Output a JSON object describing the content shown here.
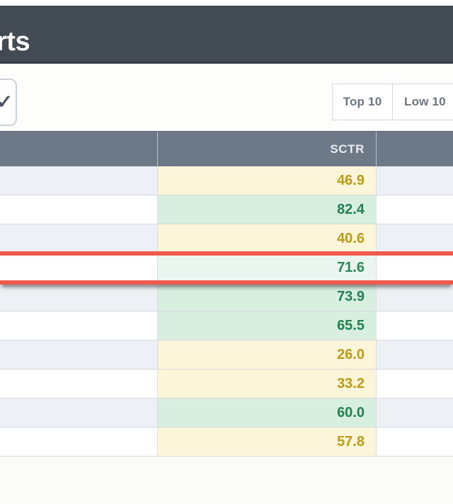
{
  "header": {
    "title_visible": "rts"
  },
  "toolbar": {
    "dropdown": {
      "icon": "check-icon",
      "glyph": "✓"
    },
    "buttons": [
      {
        "label": "Top 10"
      },
      {
        "label": "Low 10"
      }
    ]
  },
  "table": {
    "columns": [
      {
        "label": ""
      },
      {
        "label": "SCTR"
      },
      {
        "label": ""
      }
    ],
    "rows": [
      {
        "sctr": "46.9",
        "tone": "yellow",
        "dragging": false
      },
      {
        "sctr": "82.4",
        "tone": "green",
        "dragging": false
      },
      {
        "sctr": "40.6",
        "tone": "yellow",
        "dragging": false
      },
      {
        "sctr": "71.6",
        "tone": "green",
        "dragging": true
      },
      {
        "sctr": "73.9",
        "tone": "green",
        "dragging": false
      },
      {
        "sctr": "65.5",
        "tone": "green",
        "dragging": false
      },
      {
        "sctr": "26.0",
        "tone": "yellow",
        "dragging": false
      },
      {
        "sctr": "33.2",
        "tone": "yellow",
        "dragging": false
      },
      {
        "sctr": "60.0",
        "tone": "green",
        "dragging": false
      },
      {
        "sctr": "57.8",
        "tone": "yellow",
        "dragging": false
      }
    ]
  },
  "colors": {
    "app_header_bg": "#424a54",
    "table_header_bg": "#6e7987",
    "yellow_cell_bg": "#fcf5da",
    "yellow_text": "#bf9a12",
    "green_cell_bg": "#d8eedf",
    "green_text": "#1e8251",
    "drag_border_red": "#ee5a4b",
    "alt_row_bg": "#edf0f4"
  }
}
